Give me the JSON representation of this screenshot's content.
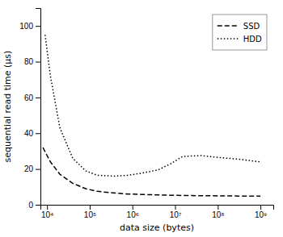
{
  "chart_data": {
    "type": "line",
    "xlabel": "data size (bytes)",
    "ylabel": "sequential read time (μs)",
    "log": "x",
    "xlim": [
      7000,
      2000000000
    ],
    "ylim": [
      0,
      110
    ],
    "xticks": [
      {
        "value": 10000,
        "label": "10⁴"
      },
      {
        "value": 100000,
        "label": "10⁵"
      },
      {
        "value": 1000000,
        "label": "10⁶"
      },
      {
        "value": 10000000,
        "label": "10⁷"
      },
      {
        "value": 100000000,
        "label": "10⁸"
      },
      {
        "value": 1000000000,
        "label": "10⁹"
      }
    ],
    "yticks": [
      0,
      20,
      40,
      60,
      80,
      100
    ],
    "grid": false,
    "legend": "upper right",
    "series": [
      {
        "name": "SSD",
        "color": "#000000",
        "line_style": "dashed",
        "x": [
          8000,
          12000,
          20000,
          40000,
          80000,
          150000,
          400000,
          800000,
          1500000,
          4000000,
          8000000,
          15000000,
          40000000,
          100000000,
          300000000,
          1000000000
        ],
        "values": [
          32,
          24,
          17,
          12,
          9,
          7.5,
          6.5,
          6.0,
          5.8,
          5.5,
          5.3,
          5.2,
          5.1,
          5.0,
          4.9,
          4.8
        ]
      },
      {
        "name": "HDD",
        "color": "#000000",
        "line_style": "dotted",
        "x": [
          9000,
          12000,
          20000,
          40000,
          80000,
          150000,
          400000,
          800000,
          1500000,
          4000000,
          8000000,
          15000000,
          40000000,
          100000000,
          300000000,
          1000000000
        ],
        "values": [
          95,
          72,
          43,
          26,
          19,
          16.5,
          16,
          16.5,
          17.5,
          19.5,
          23,
          27,
          27.5,
          26.5,
          25.5,
          24
        ]
      }
    ]
  }
}
